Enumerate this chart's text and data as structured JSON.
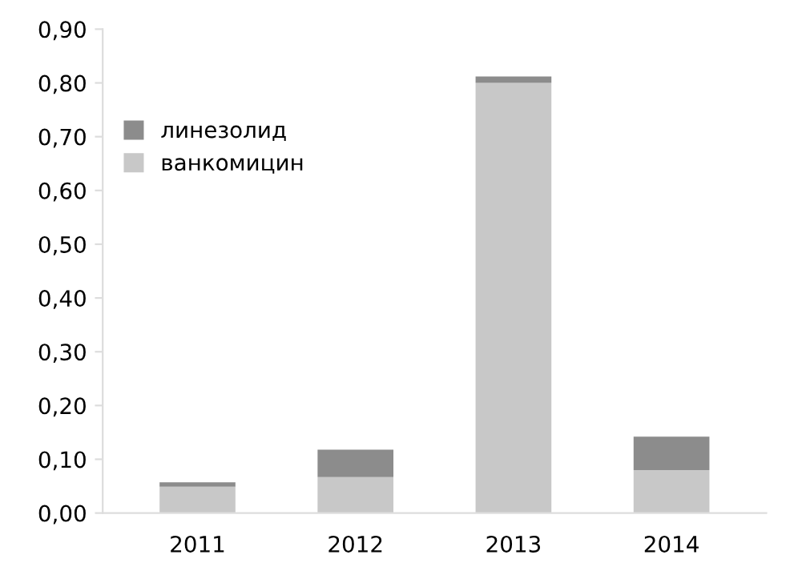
{
  "chart_data": {
    "type": "bar",
    "stacked": true,
    "categories": [
      "2011",
      "2012",
      "2013",
      "2014"
    ],
    "series": [
      {
        "name": "ванкомицин",
        "color": "#c8c8c8",
        "values": [
          0.049,
          0.067,
          0.8,
          0.08
        ]
      },
      {
        "name": "линезолид",
        "color": "#8c8c8c",
        "values": [
          0.008,
          0.051,
          0.012,
          0.062
        ]
      }
    ],
    "ylim": [
      0,
      0.9
    ],
    "yticks": [
      {
        "value": 0,
        "label": "0,00"
      },
      {
        "value": 0.1,
        "label": "0,10"
      },
      {
        "value": 0.2,
        "label": "0,20"
      },
      {
        "value": 0.3,
        "label": "0,30"
      },
      {
        "value": 0.4,
        "label": "0,40"
      },
      {
        "value": 0.5,
        "label": "0,50"
      },
      {
        "value": 0.6,
        "label": "0,60"
      },
      {
        "value": 0.7,
        "label": "0,70"
      },
      {
        "value": 0.8,
        "label": "0,80"
      },
      {
        "value": 0.9,
        "label": "0,90"
      }
    ],
    "grid": false,
    "legend": "top left"
  }
}
